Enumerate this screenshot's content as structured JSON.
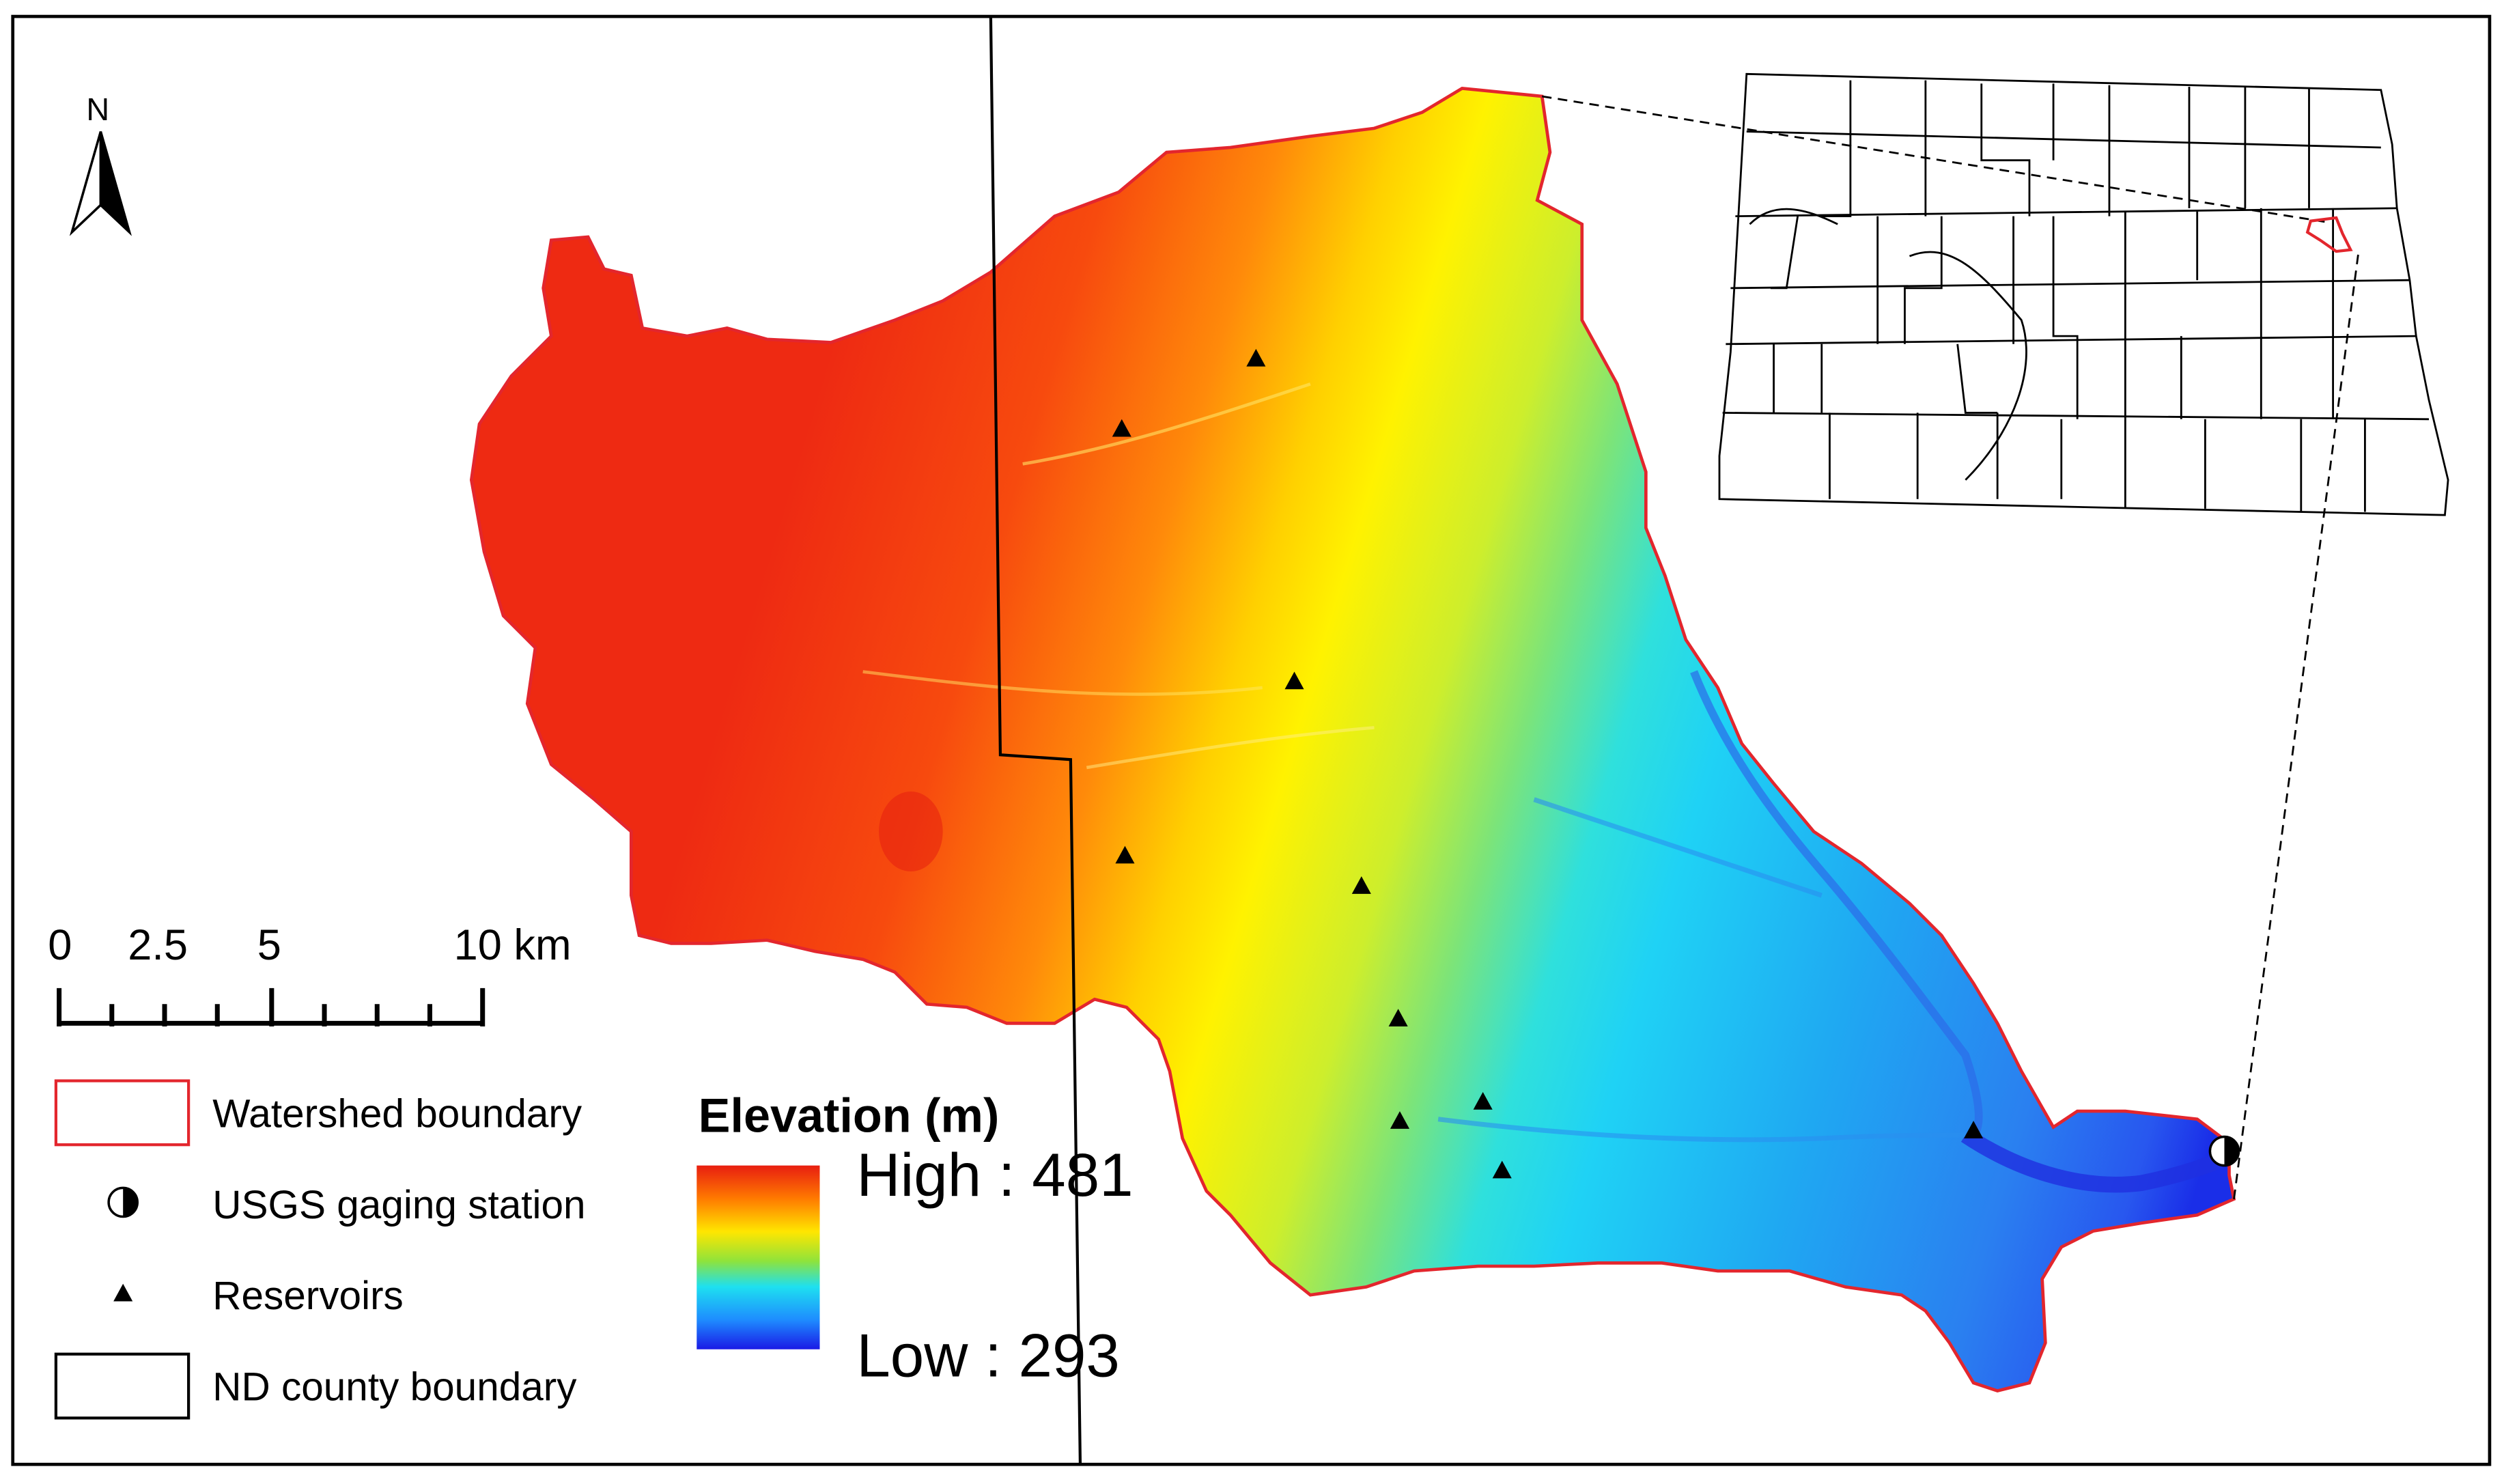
{
  "north_arrow": {
    "label": "N"
  },
  "scale_bar": {
    "ticks": [
      "0",
      "2.5",
      "5",
      "10 km"
    ]
  },
  "legend": {
    "items": [
      {
        "label": "Watershed boundary",
        "symbol": "red-outline-box"
      },
      {
        "label": "USGS gaging station",
        "symbol": "half-filled-circle"
      },
      {
        "label": "Reservoirs",
        "symbol": "black-triangle"
      },
      {
        "label": "ND county boundary",
        "symbol": "black-outline-box"
      }
    ]
  },
  "elevation": {
    "title": "Elevation (m)",
    "high_label": "High : 481",
    "low_label": "Low : 293",
    "high": 481,
    "low": 293,
    "ramp_colors": [
      "#e81e10",
      "#ff7a00",
      "#ffe600",
      "#8fe33b",
      "#1ee0f0",
      "#1e8cff",
      "#1a1ae6"
    ]
  },
  "colors": {
    "watershed_boundary": "#e3262d",
    "county_boundary": "#000000"
  }
}
